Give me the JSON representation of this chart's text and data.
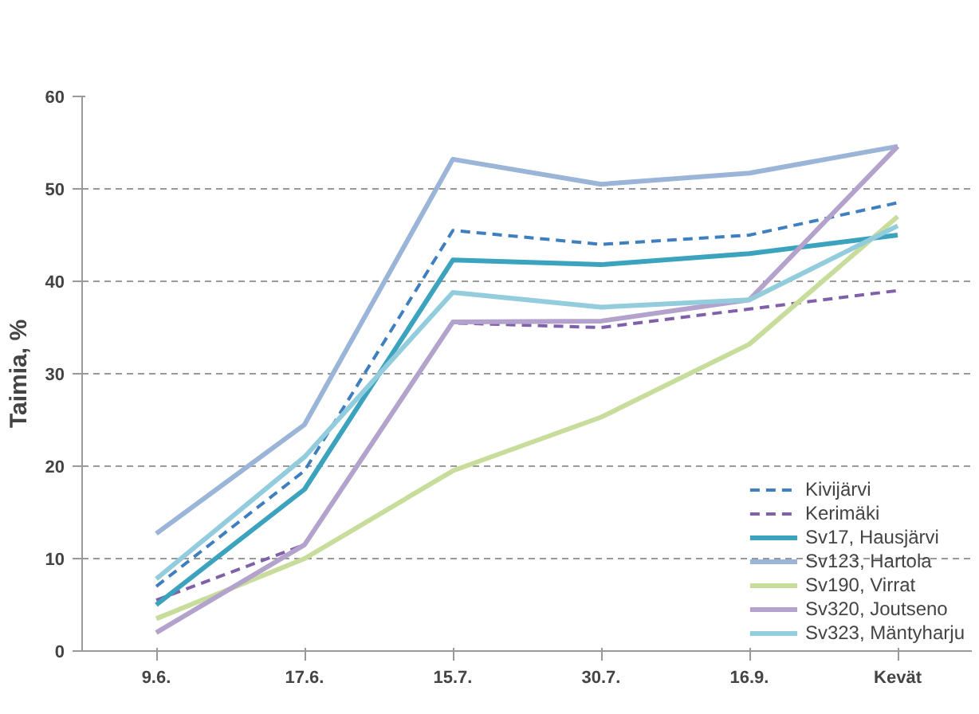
{
  "chart_data": {
    "type": "line",
    "ylabel": "Taimia, %",
    "categories": [
      "9.6.",
      "17.6.",
      "15.7.",
      "30.7.",
      "16.9.",
      "Kevät"
    ],
    "ylim": [
      0,
      60
    ],
    "yticks": [
      0,
      10,
      20,
      30,
      40,
      50,
      60
    ],
    "grid": "y",
    "legend": "bottom right",
    "marker": "none",
    "series": [
      {
        "name": "Kivijärvi",
        "color": "#3f7fbf",
        "line_style": "dashed",
        "values": [
          7,
          19.5,
          45.5,
          44,
          45,
          48.5
        ]
      },
      {
        "name": "Kerimäki",
        "color": "#8060a8",
        "line_style": "dashed",
        "values": [
          5.5,
          11.5,
          35.5,
          35,
          37,
          39
        ]
      },
      {
        "name": "Sv17, Hausjärvi",
        "color": "#3ba3be",
        "line_style": "solid",
        "values": [
          5,
          17.5,
          42.3,
          41.8,
          43,
          45
        ]
      },
      {
        "name": "Sv123, Hartola",
        "color": "#9ab5d8",
        "line_style": "solid",
        "values": [
          12.7,
          24.5,
          53.2,
          50.5,
          51.7,
          54.6
        ]
      },
      {
        "name": "Sv190, Virrat",
        "color": "#c8dd9c",
        "line_style": "solid",
        "values": [
          3.5,
          10,
          19.5,
          25.3,
          33.2,
          47
        ]
      },
      {
        "name": "Sv320, Joutseno",
        "color": "#b3a3cc",
        "line_style": "solid",
        "values": [
          2,
          11.5,
          35.6,
          35.7,
          38,
          54.6
        ]
      },
      {
        "name": "Sv323, Mäntyharju",
        "color": "#93cddd",
        "line_style": "solid",
        "values": [
          7.8,
          21,
          38.8,
          37.2,
          38,
          46
        ]
      }
    ]
  }
}
